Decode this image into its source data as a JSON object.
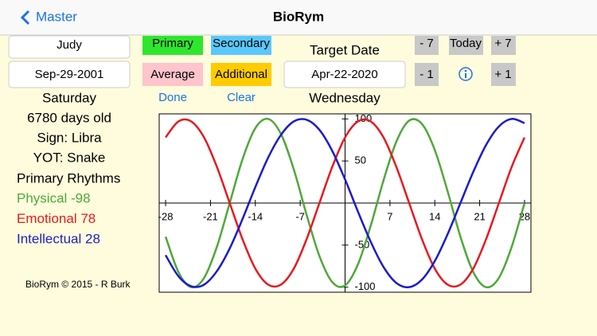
{
  "header": {
    "back": "Master",
    "title": "BioRym"
  },
  "profile": {
    "name": "Judy",
    "birth_date": "Sep-29-2001",
    "weekday": "Saturday",
    "days_old": "6780 days old",
    "sign": "Sign: Libra",
    "yot": "YOT: Snake",
    "rhythms_title": "Primary Rhythms"
  },
  "buttons": {
    "primary": "Primary",
    "secondary": "Secondary",
    "average": "Average",
    "additional": "Additional",
    "done": "Done",
    "clear": "Clear",
    "minus7": "- 7",
    "today": "Today",
    "plus7": "+ 7",
    "minus1": "- 1",
    "plus1": "+ 1"
  },
  "target": {
    "label": "Target Date",
    "date": "Apr-22-2020",
    "weekday": "Wednesday"
  },
  "footer": "BioRym © 2015 - R Burk",
  "chart_data": {
    "type": "line",
    "x": [
      -28,
      -26,
      -24,
      -22,
      -20,
      -18,
      -16,
      -14,
      -12,
      -10,
      -8,
      -6,
      -4,
      -2,
      0,
      2,
      4,
      6,
      8,
      10,
      12,
      14,
      16,
      18,
      20,
      22,
      24,
      26,
      28
    ],
    "series": [
      {
        "name": "Physical -98",
        "color": "#4fa83a",
        "values": [
          -40,
          -82,
          -100,
          -89,
          -52,
          0,
          52,
          89,
          100,
          82,
          40,
          -14,
          -63,
          -94,
          -98,
          -73,
          -27,
          27,
          73,
          98,
          94,
          63,
          14,
          -40,
          -82,
          -100,
          -89,
          -52,
          0
        ]
      },
      {
        "name": "Emotional 78",
        "color": "#e8191f",
        "values": [
          78,
          97,
          97,
          78,
          43,
          0,
          -43,
          -78,
          -97,
          -97,
          -78,
          -43,
          0,
          43,
          78,
          97,
          97,
          78,
          43,
          0,
          -43,
          -78,
          -97,
          -97,
          -78,
          -43,
          0,
          43,
          78
        ]
      },
      {
        "name": "Intellectual 28",
        "color": "#1c1cc8",
        "values": [
          -62,
          -87,
          -99,
          -97,
          -81,
          -54,
          -19,
          19,
          54,
          81,
          97,
          99,
          87,
          62,
          28,
          -10,
          -46,
          -76,
          -95,
          -100,
          -91,
          -69,
          -37,
          0,
          37,
          69,
          91,
          100,
          95
        ]
      }
    ],
    "xlim": [
      -29,
      29
    ],
    "xticks": [
      -28,
      -21,
      -14,
      -7,
      7,
      14,
      21,
      28
    ],
    "ylim": [
      -106,
      106
    ],
    "yticks": [
      100,
      50,
      -50,
      -100
    ]
  }
}
